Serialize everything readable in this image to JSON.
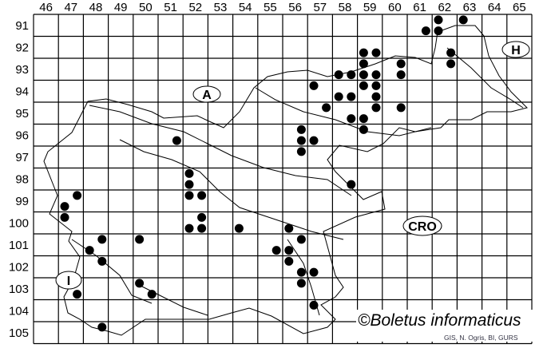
{
  "map": {
    "column_labels": [
      "46",
      "47",
      "48",
      "49",
      "50",
      "51",
      "52",
      "53",
      "54",
      "55",
      "56",
      "57",
      "58",
      "59",
      "60",
      "61",
      "62",
      "63",
      "64",
      "65"
    ],
    "row_labels": [
      "91",
      "92",
      "93",
      "94",
      "95",
      "96",
      "97",
      "98",
      "99",
      "100",
      "101",
      "102",
      "103",
      "104",
      "105"
    ],
    "country_labels": {
      "austria": "A",
      "hungary": "H",
      "croatia": "CRO",
      "italy": "I"
    },
    "copyright": "©Boletus informaticus",
    "credit": "GIS, N. Ogris, BI, GURS",
    "dot_color": "#000000",
    "occurrences": [
      [
        51.75,
        96.75
      ],
      [
        52.25,
        98.25
      ],
      [
        52.25,
        98.75
      ],
      [
        52.25,
        99.25
      ],
      [
        52.75,
        99.25
      ],
      [
        52.75,
        100.25
      ],
      [
        52.25,
        100.75
      ],
      [
        52.75,
        100.75
      ],
      [
        54.25,
        100.75
      ],
      [
        47.75,
        99.25
      ],
      [
        47.25,
        99.75
      ],
      [
        47.25,
        100.25
      ],
      [
        48.75,
        101.25
      ],
      [
        50.25,
        101.25
      ],
      [
        48.25,
        101.75
      ],
      [
        48.75,
        102.25
      ],
      [
        50.25,
        103.25
      ],
      [
        50.75,
        103.75
      ],
      [
        47.75,
        103.75
      ],
      [
        48.75,
        105.25
      ],
      [
        58.75,
        98.75
      ],
      [
        56.25,
        100.75
      ],
      [
        56.75,
        101.25
      ],
      [
        55.75,
        101.75
      ],
      [
        56.25,
        101.75
      ],
      [
        56.25,
        102.25
      ],
      [
        56.75,
        102.75
      ],
      [
        57.25,
        102.75
      ],
      [
        56.75,
        103.25
      ],
      [
        57.25,
        104.25
      ],
      [
        56.75,
        96.25
      ],
      [
        56.75,
        96.75
      ],
      [
        57.25,
        96.75
      ],
      [
        56.75,
        97.25
      ],
      [
        57.25,
        94.25
      ],
      [
        57.75,
        95.25
      ],
      [
        58.25,
        93.75
      ],
      [
        58.75,
        93.75
      ],
      [
        59.25,
        93.75
      ],
      [
        59.75,
        93.75
      ],
      [
        59.25,
        92.75
      ],
      [
        59.75,
        92.75
      ],
      [
        59.25,
        93.25
      ],
      [
        60.75,
        93.25
      ],
      [
        60.75,
        93.75
      ],
      [
        59.25,
        94.25
      ],
      [
        59.75,
        94.25
      ],
      [
        58.25,
        94.75
      ],
      [
        58.75,
        94.75
      ],
      [
        59.75,
        94.75
      ],
      [
        59.75,
        95.25
      ],
      [
        60.75,
        95.25
      ],
      [
        58.75,
        95.75
      ],
      [
        59.25,
        95.75
      ],
      [
        59.25,
        96.25
      ],
      [
        61.75,
        91.75
      ],
      [
        62.25,
        91.25
      ],
      [
        62.25,
        91.75
      ],
      [
        63.25,
        91.25
      ],
      [
        62.75,
        92.75
      ],
      [
        62.75,
        93.25
      ]
    ]
  }
}
